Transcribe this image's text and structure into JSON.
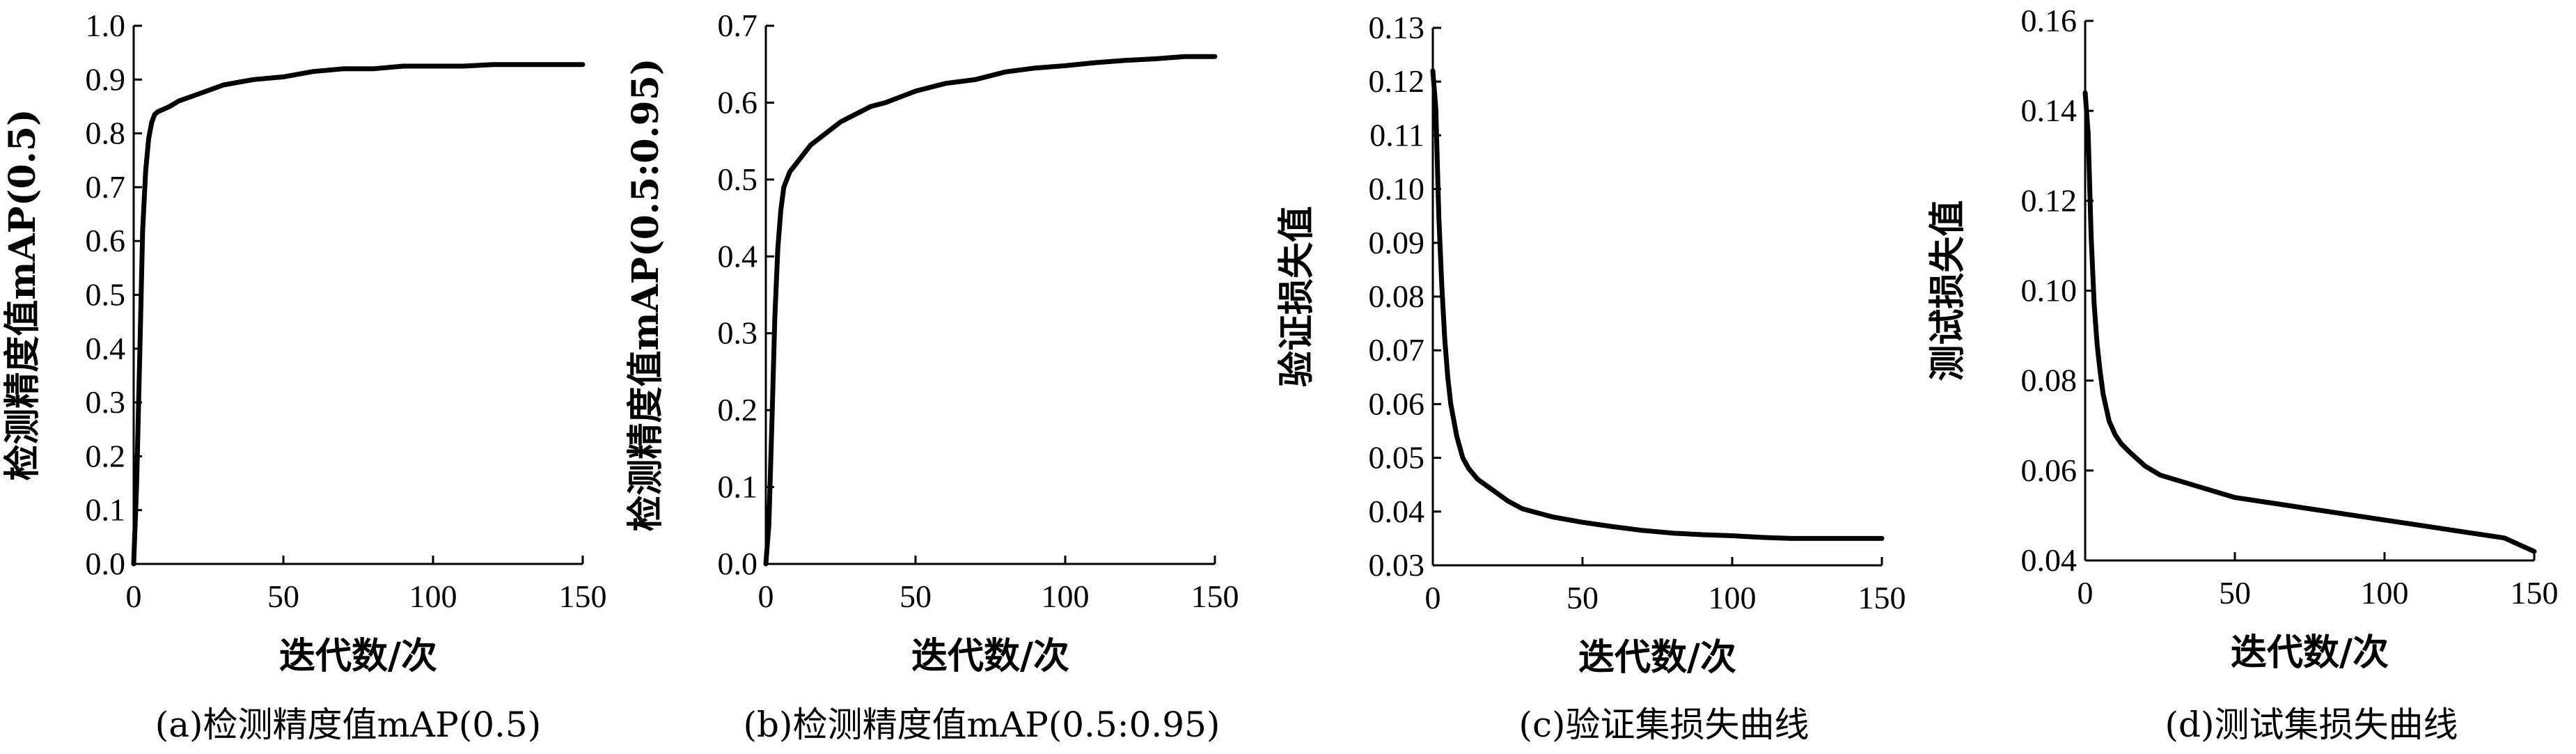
{
  "chart_data": [
    {
      "type": "line",
      "caption": "(a)检测精度值mAP(0.5)",
      "xlabel": "迭代数/次",
      "ylabel": "检测精度值mAP(0.5)",
      "xlim": [
        0,
        150
      ],
      "ylim": [
        0.0,
        1.0
      ],
      "xticks": [
        0,
        50,
        100,
        150
      ],
      "yticks": [
        0.0,
        0.1,
        0.2,
        0.3,
        0.4,
        0.5,
        0.6,
        0.7,
        0.8,
        0.9,
        1.0
      ],
      "ytick_labels": [
        "0.0",
        "0.1",
        "0.2",
        "0.3",
        "0.4",
        "0.5",
        "0.6",
        "0.7",
        "0.8",
        "0.9",
        "1.0"
      ],
      "grid": false,
      "x": [
        0,
        1,
        2,
        3,
        4,
        5,
        6,
        7,
        8,
        10,
        12,
        15,
        20,
        25,
        30,
        40,
        50,
        60,
        70,
        80,
        90,
        100,
        110,
        120,
        130,
        140,
        150
      ],
      "y": [
        0.0,
        0.15,
        0.38,
        0.62,
        0.73,
        0.79,
        0.82,
        0.835,
        0.84,
        0.845,
        0.85,
        0.86,
        0.87,
        0.88,
        0.89,
        0.9,
        0.905,
        0.915,
        0.92,
        0.92,
        0.925,
        0.925,
        0.925,
        0.928,
        0.928,
        0.928,
        0.928
      ]
    },
    {
      "type": "line",
      "caption": "(b)检测精度值mAP(0.5:0.95)",
      "xlabel": "迭代数/次",
      "ylabel": "检测精度值mAP(0.5:0.95)",
      "xlim": [
        0,
        150
      ],
      "ylim": [
        0.0,
        0.7
      ],
      "xticks": [
        0,
        50,
        100,
        150
      ],
      "yticks": [
        0.0,
        0.1,
        0.2,
        0.3,
        0.4,
        0.5,
        0.6,
        0.7
      ],
      "ytick_labels": [
        "0.0",
        "0.1",
        "0.2",
        "0.3",
        "0.4",
        "0.5",
        "0.6",
        "0.7"
      ],
      "grid": false,
      "x": [
        0,
        1,
        2,
        3,
        4,
        5,
        6,
        7,
        8,
        10,
        12,
        15,
        20,
        25,
        30,
        35,
        40,
        50,
        60,
        70,
        80,
        90,
        100,
        110,
        120,
        130,
        140,
        150
      ],
      "y": [
        0.0,
        0.05,
        0.18,
        0.32,
        0.41,
        0.46,
        0.49,
        0.5,
        0.51,
        0.52,
        0.53,
        0.545,
        0.56,
        0.575,
        0.585,
        0.595,
        0.6,
        0.615,
        0.625,
        0.63,
        0.64,
        0.645,
        0.648,
        0.652,
        0.655,
        0.657,
        0.66,
        0.66
      ]
    },
    {
      "type": "line",
      "caption": "(c)验证集损失曲线",
      "xlabel": "迭代数/次",
      "ylabel": "验证损失值",
      "xlim": [
        0,
        150
      ],
      "ylim": [
        0.03,
        0.13
      ],
      "xticks": [
        0,
        50,
        100,
        150
      ],
      "yticks": [
        0.03,
        0.04,
        0.05,
        0.06,
        0.07,
        0.08,
        0.09,
        0.1,
        0.11,
        0.12,
        0.13
      ],
      "ytick_labels": [
        "0.03",
        "0.04",
        "0.05",
        "0.06",
        "0.07",
        "0.08",
        "0.09",
        "0.10",
        "0.11",
        "0.12",
        "0.13"
      ],
      "grid": false,
      "x": [
        0,
        1,
        2,
        3,
        4,
        5,
        6,
        7,
        8,
        10,
        12,
        15,
        20,
        25,
        30,
        40,
        50,
        60,
        70,
        80,
        90,
        100,
        110,
        120,
        130,
        140,
        150
      ],
      "y": [
        0.122,
        0.115,
        0.095,
        0.082,
        0.072,
        0.065,
        0.06,
        0.057,
        0.054,
        0.05,
        0.048,
        0.046,
        0.044,
        0.042,
        0.0405,
        0.039,
        0.038,
        0.0372,
        0.0365,
        0.036,
        0.0357,
        0.0355,
        0.0352,
        0.035,
        0.035,
        0.035,
        0.035
      ]
    },
    {
      "type": "line",
      "caption": "(d)测试集损失曲线",
      "xlabel": "迭代数/次",
      "ylabel": "测试损失值",
      "xlim": [
        0,
        150
      ],
      "ylim": [
        0.04,
        0.16
      ],
      "xticks": [
        0,
        50,
        100,
        150
      ],
      "yticks": [
        0.04,
        0.06,
        0.08,
        0.1,
        0.12,
        0.14,
        0.16
      ],
      "ytick_labels": [
        "0.04",
        "0.06",
        "0.08",
        "0.10",
        "0.12",
        "0.14",
        "0.16"
      ],
      "grid": false,
      "x": [
        0,
        1,
        2,
        3,
        4,
        5,
        6,
        7,
        8,
        10,
        12,
        15,
        20,
        25,
        30,
        40,
        50,
        60,
        70,
        80,
        90,
        100,
        110,
        120,
        130,
        140,
        150
      ],
      "y": [
        0.144,
        0.135,
        0.112,
        0.097,
        0.088,
        0.082,
        0.077,
        0.074,
        0.071,
        0.068,
        0.066,
        0.064,
        0.061,
        0.059,
        0.058,
        0.056,
        0.054,
        0.053,
        0.052,
        0.051,
        0.05,
        0.049,
        0.048,
        0.047,
        0.046,
        0.045,
        0.042
      ]
    }
  ]
}
